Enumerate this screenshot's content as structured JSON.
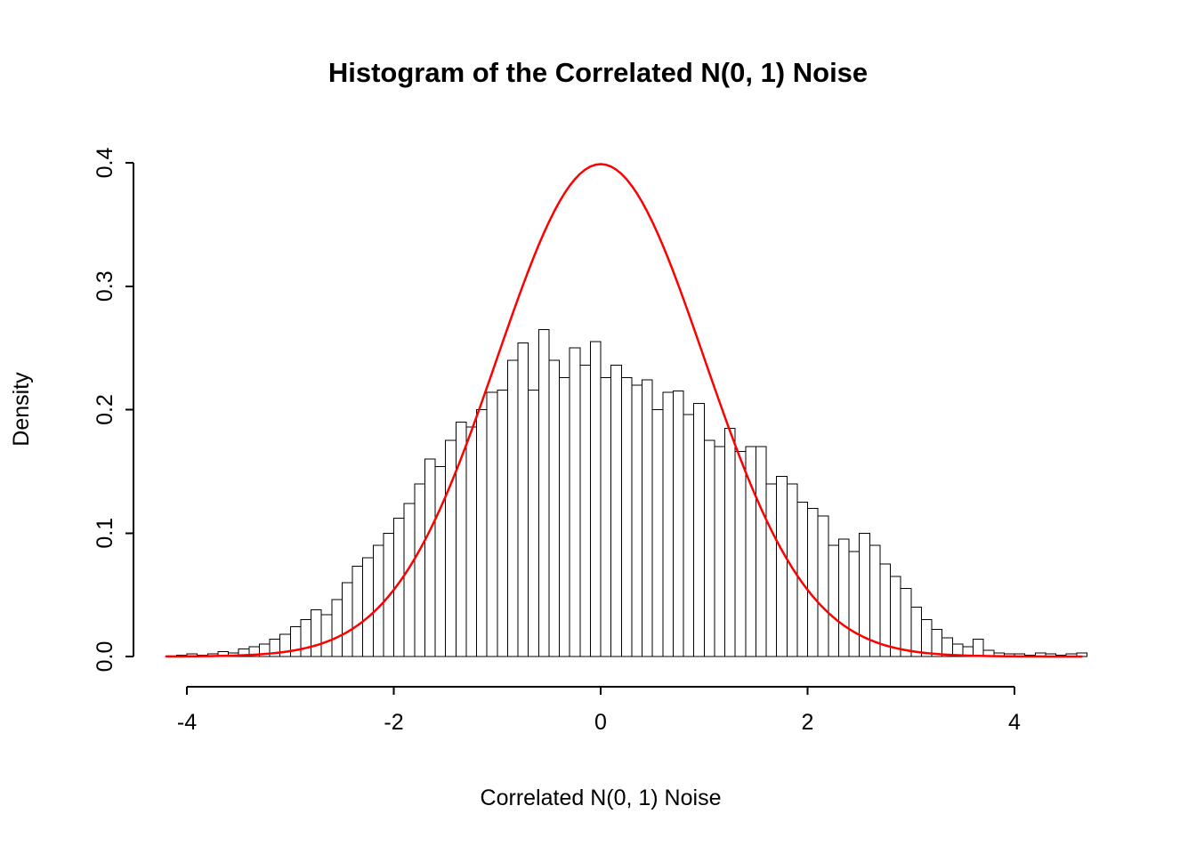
{
  "chart_data": {
    "type": "histogram",
    "title": "Histogram of the Correlated N(0, 1) Noise",
    "xlabel": "Correlated N(0, 1) Noise",
    "ylabel": "Density",
    "xlim": [
      -4.3,
      4.8
    ],
    "ylim": [
      0,
      0.4
    ],
    "xticks": [
      -4,
      -2,
      0,
      2,
      4
    ],
    "ytick_labels": [
      "0.0",
      "0.1",
      "0.2",
      "0.3",
      "0.4"
    ],
    "ytick_values": [
      0,
      0.1,
      0.2,
      0.3,
      0.4
    ],
    "grid": false,
    "legend": false,
    "bar_fill": "#ffffff",
    "bar_stroke": "#000000",
    "bin_start": -4.1,
    "bin_width": 0.1,
    "densities": [
      0.001,
      0.002,
      0.001,
      0.002,
      0.004,
      0.003,
      0.006,
      0.008,
      0.01,
      0.014,
      0.018,
      0.024,
      0.03,
      0.038,
      0.034,
      0.046,
      0.06,
      0.073,
      0.08,
      0.09,
      0.1,
      0.112,
      0.124,
      0.14,
      0.16,
      0.154,
      0.175,
      0.19,
      0.186,
      0.2,
      0.214,
      0.216,
      0.24,
      0.254,
      0.216,
      0.265,
      0.24,
      0.226,
      0.25,
      0.236,
      0.255,
      0.226,
      0.236,
      0.226,
      0.22,
      0.224,
      0.2,
      0.214,
      0.215,
      0.196,
      0.205,
      0.175,
      0.17,
      0.185,
      0.166,
      0.17,
      0.17,
      0.14,
      0.146,
      0.14,
      0.125,
      0.12,
      0.114,
      0.09,
      0.095,
      0.085,
      0.1,
      0.09,
      0.075,
      0.065,
      0.055,
      0.04,
      0.03,
      0.022,
      0.015,
      0.01,
      0.008,
      0.014,
      0.005,
      0.003,
      0.002,
      0.002,
      0.001,
      0.003,
      0.002,
      0.001,
      0.002,
      0.003
    ],
    "overlay_curve": {
      "name": "standard-normal-density",
      "distribution": "normal",
      "mean": 0,
      "sd": 1,
      "peak_density": 0.3989,
      "color": "#ff0000"
    }
  }
}
